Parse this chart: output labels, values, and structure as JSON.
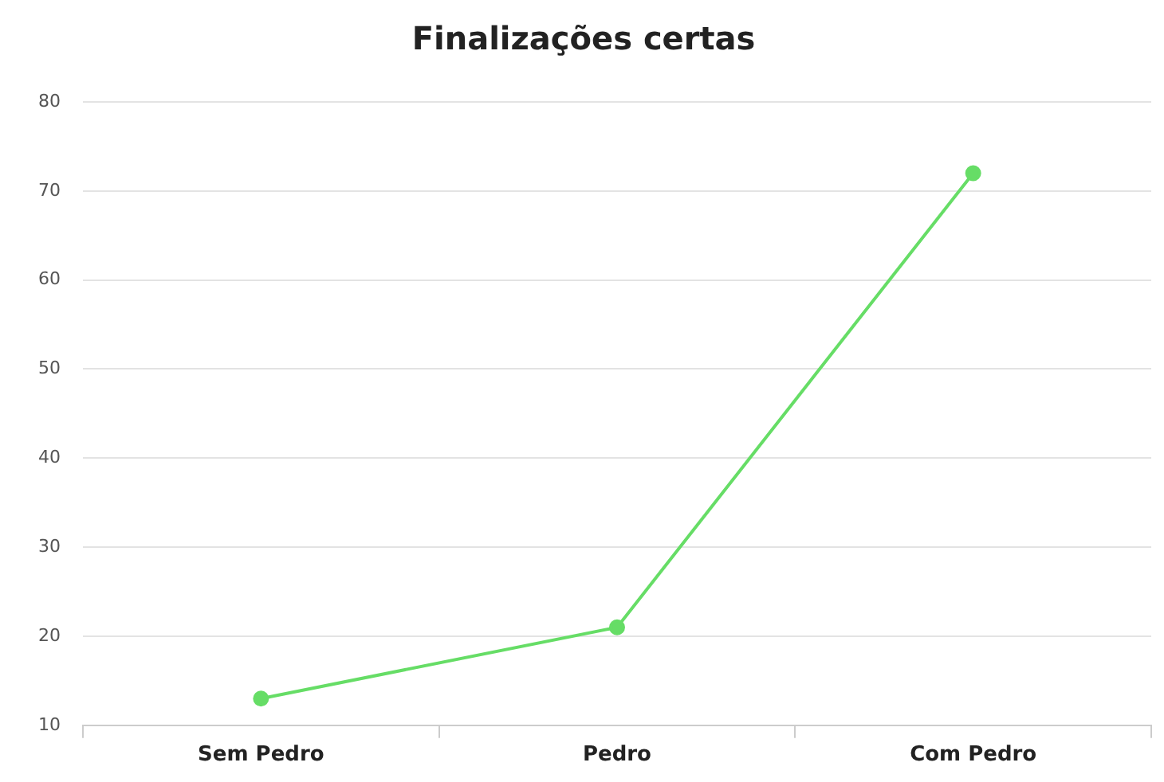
{
  "chart_data": {
    "type": "line",
    "title": "Finalizações certas",
    "categories": [
      "Sem Pedro",
      "Pedro",
      "Com Pedro"
    ],
    "series": [
      {
        "color": "#66dd66",
        "values": [
          13,
          21,
          72
        ]
      }
    ],
    "ylim": [
      10,
      80
    ],
    "yticks": [
      10,
      20,
      30,
      40,
      50,
      60,
      70,
      80
    ],
    "grid": "y",
    "legend": false,
    "marker": "circle",
    "line_style": "solid"
  }
}
